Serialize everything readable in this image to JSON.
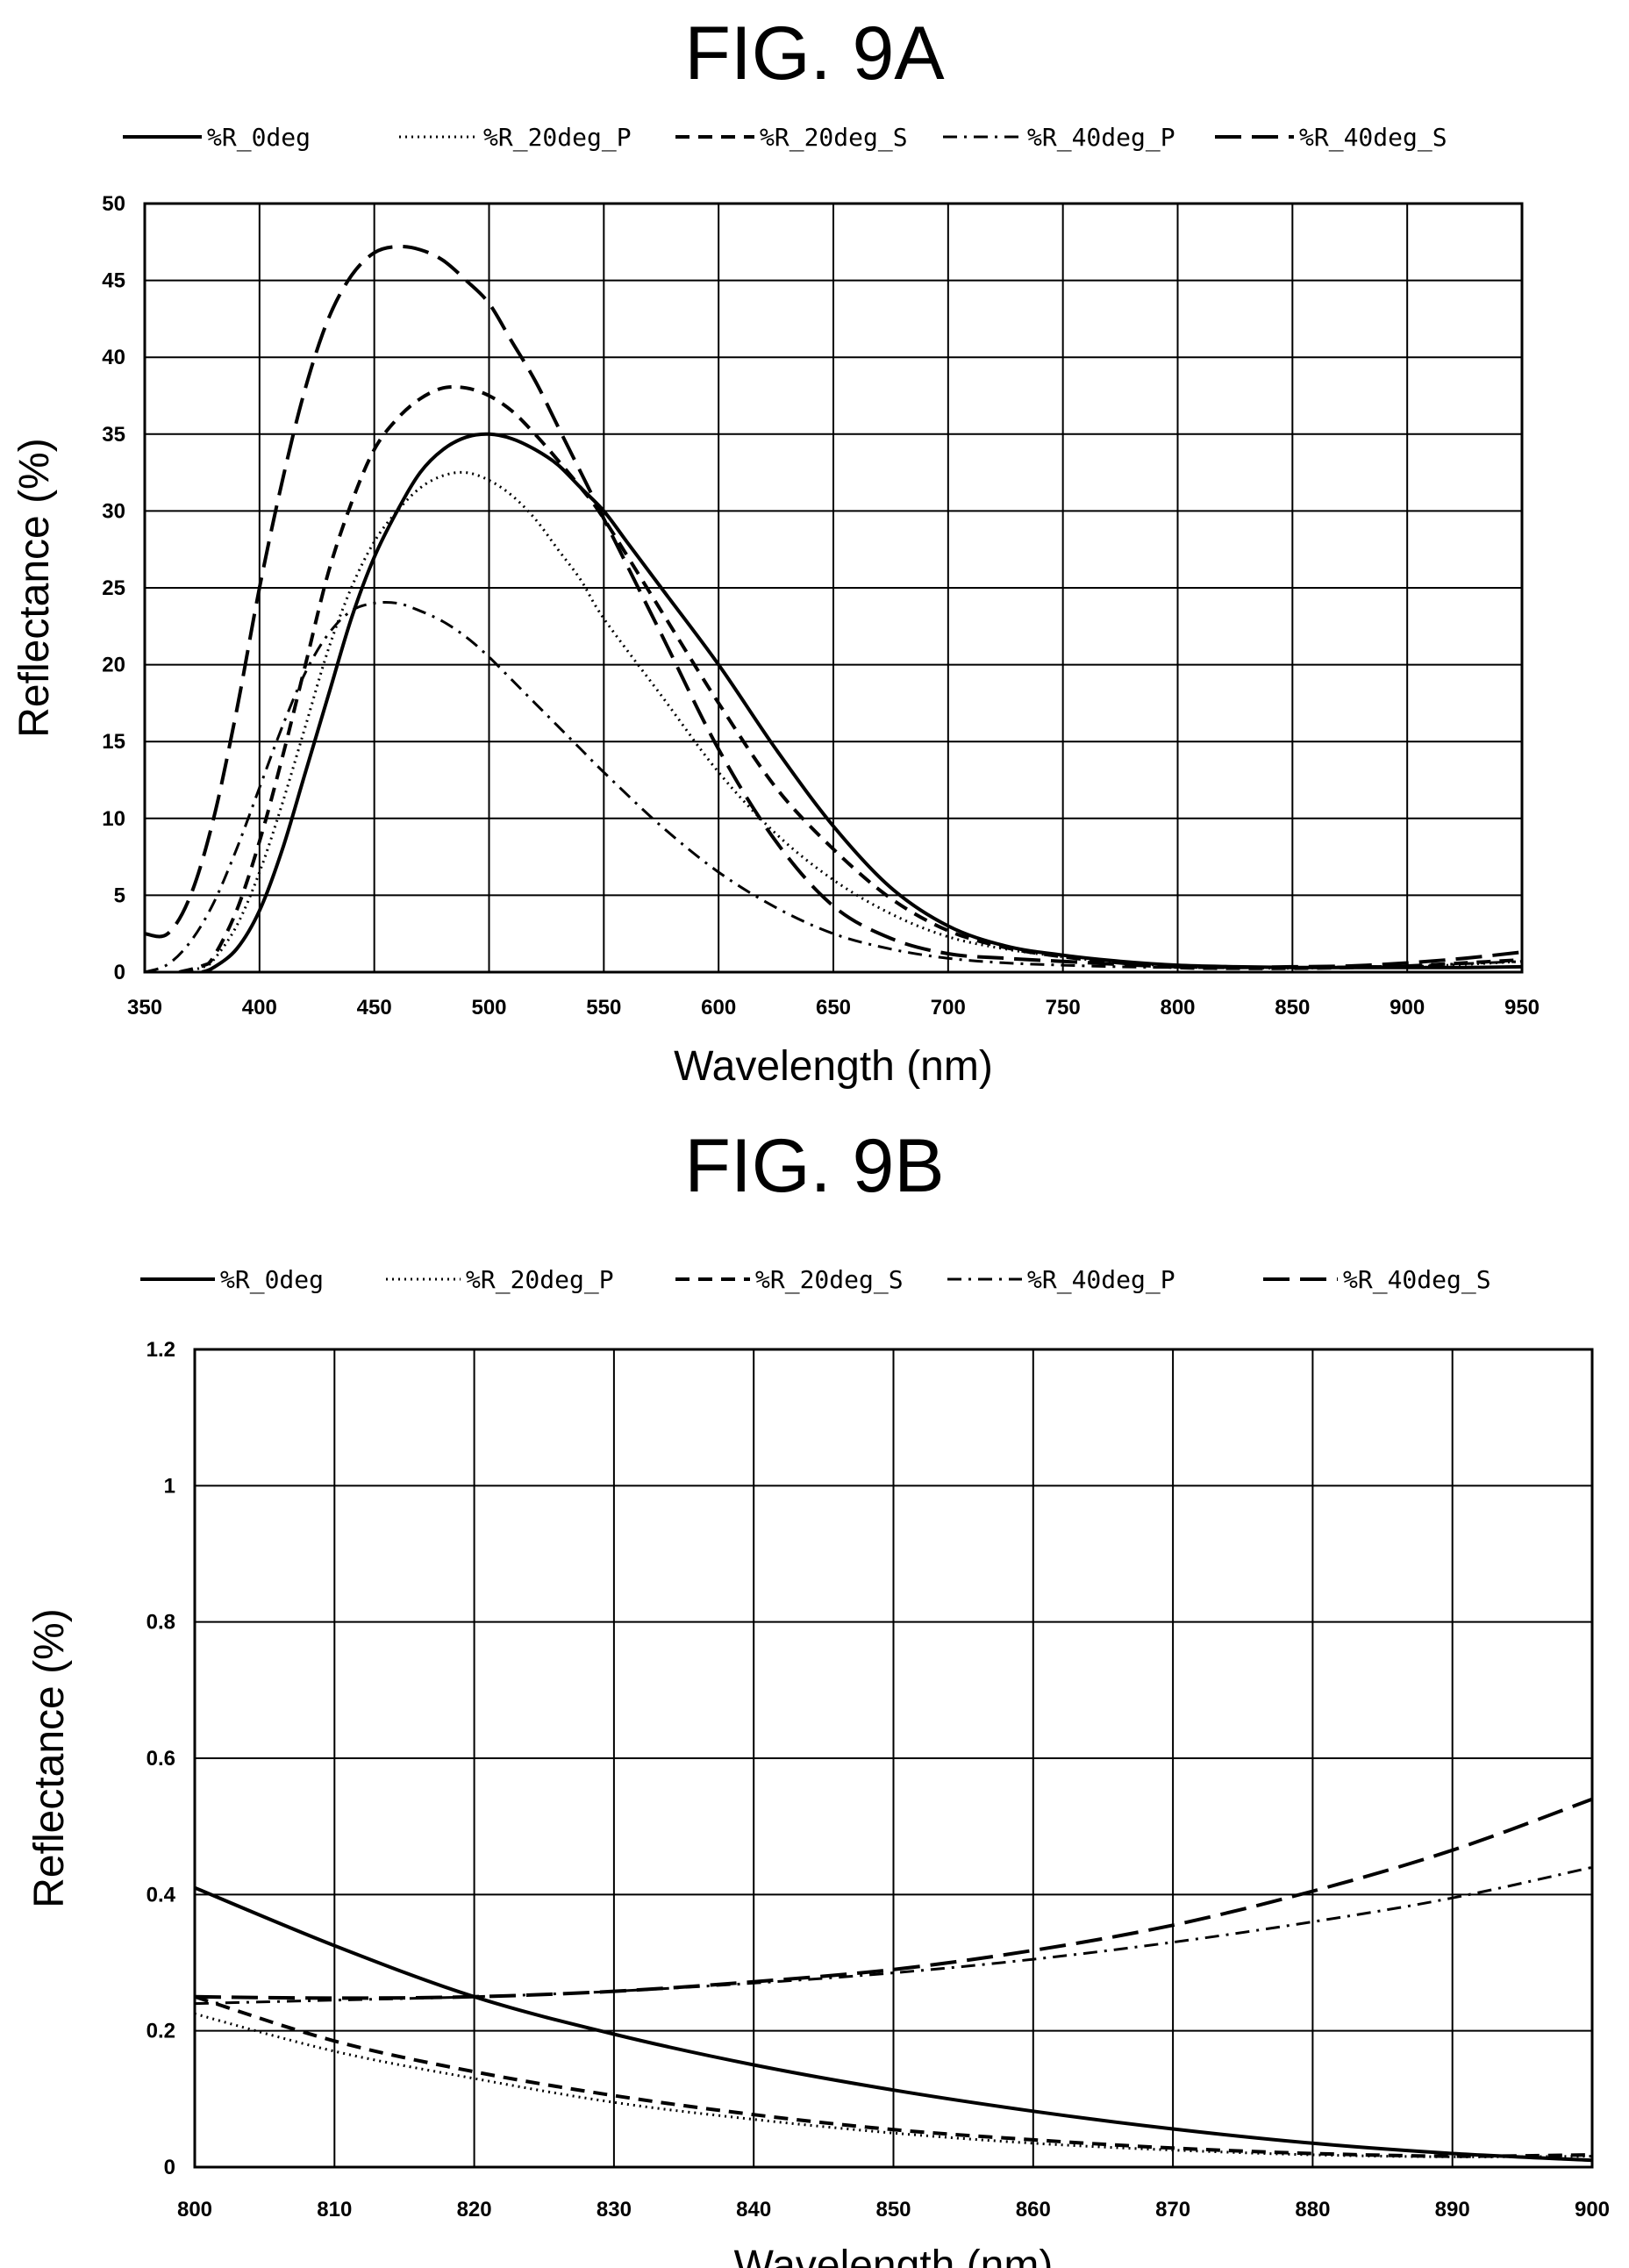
{
  "chart_data": [
    {
      "type": "line",
      "title": "FIG. 9A",
      "xlabel": "Wavelength (nm)",
      "ylabel": "Reflectance (%)",
      "xlim": [
        350,
        950
      ],
      "ylim": [
        0,
        50
      ],
      "xticks": [
        350,
        400,
        450,
        500,
        550,
        600,
        650,
        700,
        750,
        800,
        850,
        900,
        950
      ],
      "yticks": [
        0,
        5,
        10,
        15,
        20,
        25,
        30,
        35,
        40,
        45,
        50
      ],
      "grid": true,
      "legend_position": "top",
      "series": [
        {
          "name": "%R_0deg",
          "x": [
            375,
            380,
            390,
            400,
            410,
            420,
            430,
            440,
            450,
            460,
            470,
            480,
            490,
            500,
            510,
            520,
            530,
            540,
            550,
            560,
            575,
            600,
            625,
            650,
            675,
            700,
            725,
            750,
            775,
            800,
            825,
            850,
            875,
            900,
            925,
            950
          ],
          "y": [
            0,
            0.3,
            1.5,
            4,
            8,
            13,
            18,
            23,
            27,
            30,
            32.5,
            34,
            34.8,
            35,
            34.7,
            34,
            33,
            31.5,
            30,
            28,
            25,
            20,
            14.5,
            9.5,
            5.5,
            3,
            1.7,
            1.1,
            0.7,
            0.45,
            0.35,
            0.3,
            0.3,
            0.3,
            0.3,
            0.35
          ]
        },
        {
          "name": "%R_20deg_P",
          "x": [
            365,
            375,
            380,
            390,
            400,
            410,
            420,
            430,
            440,
            450,
            460,
            470,
            480,
            490,
            500,
            510,
            520,
            530,
            540,
            550,
            575,
            600,
            625,
            650,
            675,
            700,
            725,
            750,
            775,
            800,
            825,
            850,
            875,
            900,
            925,
            950
          ],
          "y": [
            0,
            0.3,
            0.8,
            3,
            6.5,
            11,
            16,
            21,
            25,
            28,
            30,
            31.5,
            32.3,
            32.5,
            32,
            31,
            29.5,
            27.5,
            25.5,
            23,
            18,
            13,
            9,
            6,
            3.8,
            2.3,
            1.5,
            1,
            0.6,
            0.4,
            0.3,
            0.25,
            0.3,
            0.35,
            0.5,
            0.7
          ]
        },
        {
          "name": "%R_20deg_S",
          "x": [
            365,
            375,
            380,
            390,
            400,
            410,
            420,
            430,
            440,
            450,
            460,
            470,
            480,
            490,
            500,
            510,
            520,
            530,
            540,
            550,
            575,
            600,
            625,
            650,
            675,
            700,
            725,
            750,
            775,
            800,
            825,
            850,
            875,
            900,
            925,
            950
          ],
          "y": [
            0,
            0.4,
            1,
            4,
            8.5,
            14,
            20,
            26,
            30.5,
            34,
            36,
            37.3,
            38,
            38,
            37.5,
            36.5,
            35,
            33.3,
            31.5,
            29.5,
            23.5,
            17.5,
            12,
            8,
            4.8,
            2.7,
            1.6,
            1,
            0.6,
            0.3,
            0.25,
            0.25,
            0.3,
            0.4,
            0.6,
            0.8
          ]
        },
        {
          "name": "%R_40deg_P",
          "x": [
            350,
            360,
            370,
            380,
            390,
            400,
            410,
            420,
            430,
            440,
            450,
            460,
            470,
            480,
            490,
            500,
            510,
            520,
            530,
            540,
            550,
            575,
            600,
            625,
            650,
            675,
            700,
            725,
            750,
            775,
            800,
            825,
            850,
            875,
            900,
            925,
            950
          ],
          "y": [
            0,
            0.5,
            2,
            4.5,
            8,
            12,
            16,
            19.5,
            22,
            23.5,
            24,
            24,
            23.5,
            22.8,
            21.8,
            20.5,
            19,
            17.5,
            16,
            14.5,
            13,
            9.5,
            6.5,
            4.2,
            2.5,
            1.5,
            0.9,
            0.6,
            0.45,
            0.35,
            0.3,
            0.3,
            0.3,
            0.35,
            0.4,
            0.55,
            0.7
          ]
        },
        {
          "name": "%R_40deg_S",
          "x": [
            350,
            360,
            370,
            380,
            390,
            400,
            410,
            420,
            430,
            440,
            450,
            460,
            470,
            480,
            490,
            500,
            510,
            520,
            530,
            540,
            550,
            575,
            600,
            625,
            650,
            675,
            700,
            725,
            750,
            775,
            800,
            825,
            850,
            875,
            900,
            925,
            950
          ],
          "y": [
            2.5,
            2.5,
            5,
            10,
            17,
            25,
            32,
            38,
            42.5,
            45.3,
            46.8,
            47.2,
            47,
            46.3,
            45,
            43.5,
            41,
            38.5,
            35.5,
            32.5,
            29.5,
            22,
            14.5,
            8.5,
            4.3,
            2.2,
            1.2,
            0.9,
            0.7,
            0.5,
            0.35,
            0.3,
            0.35,
            0.4,
            0.6,
            0.9,
            1.3
          ]
        }
      ]
    },
    {
      "type": "line",
      "title": "FIG. 9B",
      "xlabel": "Wavelength (nm)",
      "ylabel": "Reflectance (%)",
      "xlim": [
        800,
        900
      ],
      "ylim": [
        0,
        1.2
      ],
      "xticks": [
        800,
        810,
        820,
        830,
        840,
        850,
        860,
        870,
        880,
        890,
        900
      ],
      "yticks": [
        0,
        0.2,
        0.4,
        0.6,
        0.8,
        1,
        1.2
      ],
      "grid": true,
      "legend_position": "top",
      "series": [
        {
          "name": "%R_0deg",
          "x": [
            800,
            810,
            820,
            830,
            840,
            850,
            860,
            870,
            880,
            890,
            900
          ],
          "y": [
            0.41,
            0.325,
            0.25,
            0.195,
            0.15,
            0.113,
            0.082,
            0.056,
            0.035,
            0.02,
            0.01
          ]
        },
        {
          "name": "%R_20deg_P",
          "x": [
            800,
            810,
            820,
            830,
            840,
            850,
            860,
            870,
            880,
            890,
            900
          ],
          "y": [
            0.225,
            0.17,
            0.13,
            0.095,
            0.07,
            0.05,
            0.035,
            0.025,
            0.018,
            0.015,
            0.016
          ]
        },
        {
          "name": "%R_20deg_S",
          "x": [
            800,
            810,
            820,
            830,
            840,
            850,
            860,
            870,
            880,
            890,
            900
          ],
          "y": [
            0.25,
            0.185,
            0.14,
            0.105,
            0.077,
            0.055,
            0.04,
            0.028,
            0.02,
            0.016,
            0.018
          ]
        },
        {
          "name": "%R_40deg_P",
          "x": [
            800,
            810,
            820,
            830,
            840,
            850,
            860,
            870,
            880,
            890,
            900
          ],
          "y": [
            0.24,
            0.245,
            0.25,
            0.258,
            0.27,
            0.285,
            0.305,
            0.33,
            0.36,
            0.395,
            0.44
          ]
        },
        {
          "name": "%R_40deg_S",
          "x": [
            800,
            810,
            820,
            830,
            840,
            850,
            860,
            870,
            880,
            890,
            900
          ],
          "y": [
            0.25,
            0.248,
            0.25,
            0.258,
            0.272,
            0.29,
            0.318,
            0.355,
            0.405,
            0.465,
            0.54
          ]
        }
      ]
    }
  ],
  "series_styles": {
    "%R_0deg": {
      "color": "#000000",
      "dash": "",
      "width": 4
    },
    "%R_20deg_P": {
      "color": "#000000",
      "dash": "2 5",
      "width": 3
    },
    "%R_20deg_S": {
      "color": "#000000",
      "dash": "16 10",
      "width": 4
    },
    "%R_40deg_P": {
      "color": "#000000",
      "dash": "16 8 3 8",
      "width": 3
    },
    "%R_40deg_S": {
      "color": "#000000",
      "dash": "30 12",
      "width": 4
    }
  }
}
